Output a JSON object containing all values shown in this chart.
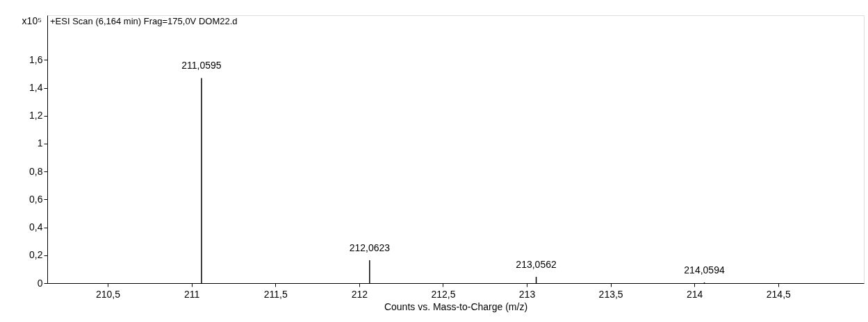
{
  "chart_data": {
    "type": "bar",
    "title": "+ESI Scan (6,164 min) Frag=175,0V DOM22.d",
    "xlabel": "Counts vs. Mass-to-Charge (m/z)",
    "annotations": [
      "x10⁵"
    ],
    "x": [
      211.0595,
      212.0623,
      213.0562,
      214.0594
    ],
    "values": [
      1.47,
      0.164,
      0.045,
      0.005
    ],
    "value_labels": [
      "211,0595",
      "212,0623",
      "213,0562",
      "214,0594"
    ],
    "color": "#000000",
    "xlim": [
      210.16,
      214.99
    ],
    "xticks": [
      {
        "value": 210.5,
        "label": "210,5"
      },
      211,
      {
        "value": 211.5,
        "label": "211,5"
      },
      212,
      {
        "value": 212.5,
        "label": "212,5"
      },
      213,
      {
        "value": 213.5,
        "label": "213,5"
      },
      214,
      {
        "value": 214.5,
        "label": "214,5"
      }
    ],
    "ylim": [
      0,
      1.92
    ],
    "yticks": [
      0,
      {
        "value": 0.2,
        "label": "0,2"
      },
      {
        "value": 0.4,
        "label": "0,4"
      },
      {
        "value": 0.6,
        "label": "0,6"
      },
      {
        "value": 0.8,
        "label": "0,8"
      },
      1,
      {
        "value": 1.2,
        "label": "1,2"
      },
      {
        "value": 1.4,
        "label": "1,4"
      },
      {
        "value": 1.6,
        "label": "1,6"
      }
    ],
    "grid": false
  }
}
